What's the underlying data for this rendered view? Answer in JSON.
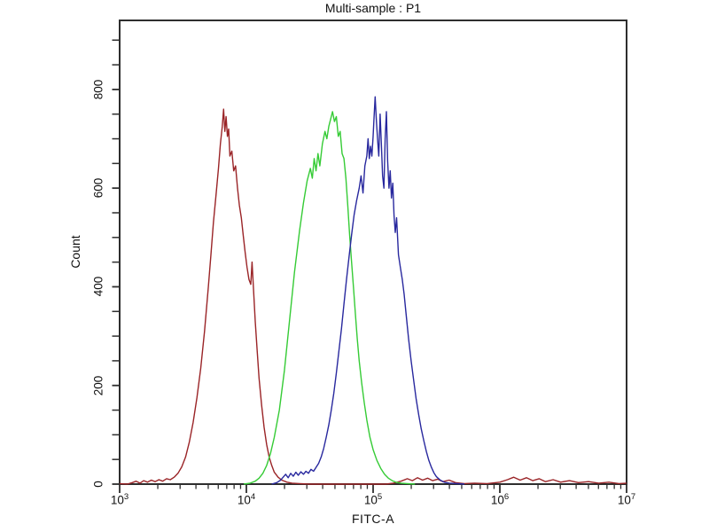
{
  "chart_data": {
    "type": "line",
    "subtype": "flow-cytometry-histogram-overlay",
    "title": "Multi-sample : P1",
    "xlabel": "FITC-A",
    "ylabel": "Count",
    "x_scale": "log10",
    "x_log_range": [
      3,
      7
    ],
    "ylim": [
      0,
      940
    ],
    "grid": false,
    "legend": null,
    "x_axis": {
      "label": "FITC-A",
      "tick_exponents": [
        3,
        4,
        5,
        6,
        7
      ],
      "minor_tick_multipliers": [
        2,
        3,
        4,
        5,
        6,
        7,
        8,
        9
      ]
    },
    "y_axis": {
      "label": "Count",
      "ticks": [
        0,
        200,
        400,
        600,
        800
      ],
      "minor_step": 50,
      "max_minor_tick": 900
    },
    "colors": {
      "red_series": "#9a2427",
      "green_series": "#35cb35",
      "blue_series": "#28289e",
      "axis": "#2e2e2e",
      "text": "#111111",
      "background": "#ffffff"
    },
    "peaks": [
      {
        "series": "red",
        "peak_x_approx": 7000,
        "peak_count": 760
      },
      {
        "series": "green",
        "peak_x_approx": 48000,
        "peak_count": 755
      },
      {
        "series": "blue",
        "peak_x_approx": 105000,
        "peak_count": 785
      }
    ],
    "series": [
      {
        "name": "red",
        "color": "#9a2427",
        "points": [
          [
            3.0,
            1
          ],
          [
            3.06,
            0
          ],
          [
            3.1,
            3
          ],
          [
            3.13,
            6
          ],
          [
            3.16,
            2
          ],
          [
            3.19,
            7
          ],
          [
            3.22,
            4
          ],
          [
            3.25,
            8
          ],
          [
            3.28,
            5
          ],
          [
            3.31,
            9
          ],
          [
            3.34,
            6
          ],
          [
            3.37,
            11
          ],
          [
            3.4,
            9
          ],
          [
            3.43,
            14
          ],
          [
            3.46,
            22
          ],
          [
            3.49,
            35
          ],
          [
            3.52,
            55
          ],
          [
            3.55,
            85
          ],
          [
            3.58,
            125
          ],
          [
            3.61,
            175
          ],
          [
            3.64,
            235
          ],
          [
            3.67,
            310
          ],
          [
            3.7,
            400
          ],
          [
            3.72,
            465
          ],
          [
            3.74,
            530
          ],
          [
            3.76,
            585
          ],
          [
            3.78,
            640
          ],
          [
            3.795,
            690
          ],
          [
            3.81,
            725
          ],
          [
            3.82,
            760
          ],
          [
            3.83,
            715
          ],
          [
            3.84,
            745
          ],
          [
            3.85,
            705
          ],
          [
            3.86,
            720
          ],
          [
            3.87,
            665
          ],
          [
            3.885,
            675
          ],
          [
            3.9,
            635
          ],
          [
            3.915,
            645
          ],
          [
            3.93,
            600
          ],
          [
            3.945,
            565
          ],
          [
            3.96,
            540
          ],
          [
            3.975,
            505
          ],
          [
            3.99,
            470
          ],
          [
            4.005,
            440
          ],
          [
            4.02,
            415
          ],
          [
            4.035,
            405
          ],
          [
            4.045,
            450
          ],
          [
            4.055,
            400
          ],
          [
            4.07,
            330
          ],
          [
            4.085,
            270
          ],
          [
            4.1,
            215
          ],
          [
            4.12,
            160
          ],
          [
            4.14,
            115
          ],
          [
            4.16,
            80
          ],
          [
            4.18,
            55
          ],
          [
            4.2,
            38
          ],
          [
            4.22,
            24
          ],
          [
            4.25,
            14
          ],
          [
            4.28,
            8
          ],
          [
            4.32,
            4
          ],
          [
            4.36,
            2
          ],
          [
            4.42,
            1
          ],
          [
            4.5,
            0
          ],
          [
            5.1,
            0
          ],
          [
            5.16,
            2
          ],
          [
            5.22,
            6
          ],
          [
            5.27,
            11
          ],
          [
            5.31,
            7
          ],
          [
            5.35,
            13
          ],
          [
            5.39,
            8
          ],
          [
            5.43,
            12
          ],
          [
            5.47,
            7
          ],
          [
            5.51,
            10
          ],
          [
            5.55,
            5
          ],
          [
            5.6,
            8
          ],
          [
            5.65,
            3
          ],
          [
            5.72,
            1
          ],
          [
            5.8,
            2
          ],
          [
            5.9,
            1
          ],
          [
            6.0,
            4
          ],
          [
            6.06,
            9
          ],
          [
            6.11,
            14
          ],
          [
            6.16,
            8
          ],
          [
            6.21,
            13
          ],
          [
            6.26,
            7
          ],
          [
            6.31,
            11
          ],
          [
            6.36,
            5
          ],
          [
            6.42,
            9
          ],
          [
            6.48,
            4
          ],
          [
            6.55,
            7
          ],
          [
            6.62,
            3
          ],
          [
            6.7,
            5
          ],
          [
            6.78,
            2
          ],
          [
            6.86,
            4
          ],
          [
            6.94,
            1
          ],
          [
            7.0,
            2
          ]
        ]
      },
      {
        "name": "green",
        "color": "#35cb35",
        "points": [
          [
            3.98,
            0
          ],
          [
            4.03,
            2
          ],
          [
            4.07,
            6
          ],
          [
            4.1,
            12
          ],
          [
            4.13,
            22
          ],
          [
            4.16,
            38
          ],
          [
            4.19,
            62
          ],
          [
            4.22,
            95
          ],
          [
            4.26,
            150
          ],
          [
            4.3,
            230
          ],
          [
            4.34,
            330
          ],
          [
            4.38,
            430
          ],
          [
            4.42,
            515
          ],
          [
            4.45,
            570
          ],
          [
            4.48,
            615
          ],
          [
            4.505,
            640
          ],
          [
            4.52,
            620
          ],
          [
            4.535,
            660
          ],
          [
            4.55,
            635
          ],
          [
            4.565,
            670
          ],
          [
            4.58,
            645
          ],
          [
            4.6,
            690
          ],
          [
            4.62,
            715
          ],
          [
            4.635,
            700
          ],
          [
            4.65,
            725
          ],
          [
            4.665,
            740
          ],
          [
            4.68,
            755
          ],
          [
            4.695,
            735
          ],
          [
            4.71,
            745
          ],
          [
            4.725,
            705
          ],
          [
            4.74,
            715
          ],
          [
            4.755,
            670
          ],
          [
            4.77,
            660
          ],
          [
            4.785,
            620
          ],
          [
            4.8,
            565
          ],
          [
            4.815,
            505
          ],
          [
            4.83,
            450
          ],
          [
            4.845,
            400
          ],
          [
            4.86,
            345
          ],
          [
            4.875,
            295
          ],
          [
            4.89,
            250
          ],
          [
            4.91,
            205
          ],
          [
            4.93,
            165
          ],
          [
            4.95,
            130
          ],
          [
            4.975,
            95
          ],
          [
            5.0,
            70
          ],
          [
            5.03,
            48
          ],
          [
            5.06,
            32
          ],
          [
            5.09,
            20
          ],
          [
            5.12,
            12
          ],
          [
            5.15,
            7
          ],
          [
            5.18,
            4
          ],
          [
            5.22,
            2
          ],
          [
            5.27,
            1
          ],
          [
            5.33,
            0
          ]
        ]
      },
      {
        "name": "blue",
        "color": "#28289e",
        "points": [
          [
            4.2,
            0
          ],
          [
            4.24,
            3
          ],
          [
            4.27,
            8
          ],
          [
            4.29,
            14
          ],
          [
            4.31,
            20
          ],
          [
            4.33,
            13
          ],
          [
            4.35,
            22
          ],
          [
            4.37,
            16
          ],
          [
            4.39,
            24
          ],
          [
            4.41,
            18
          ],
          [
            4.43,
            25
          ],
          [
            4.45,
            20
          ],
          [
            4.47,
            26
          ],
          [
            4.49,
            22
          ],
          [
            4.51,
            30
          ],
          [
            4.53,
            26
          ],
          [
            4.55,
            34
          ],
          [
            4.57,
            42
          ],
          [
            4.59,
            55
          ],
          [
            4.61,
            72
          ],
          [
            4.63,
            95
          ],
          [
            4.65,
            120
          ],
          [
            4.67,
            150
          ],
          [
            4.69,
            185
          ],
          [
            4.71,
            225
          ],
          [
            4.73,
            270
          ],
          [
            4.75,
            315
          ],
          [
            4.77,
            365
          ],
          [
            4.79,
            415
          ],
          [
            4.81,
            460
          ],
          [
            4.83,
            505
          ],
          [
            4.85,
            545
          ],
          [
            4.87,
            575
          ],
          [
            4.89,
            600
          ],
          [
            4.905,
            625
          ],
          [
            4.92,
            590
          ],
          [
            4.935,
            645
          ],
          [
            4.95,
            665
          ],
          [
            4.96,
            700
          ],
          [
            4.97,
            660
          ],
          [
            4.98,
            685
          ],
          [
            4.99,
            665
          ],
          [
            5.0,
            705
          ],
          [
            5.008,
            745
          ],
          [
            5.016,
            785
          ],
          [
            5.025,
            740
          ],
          [
            5.035,
            700
          ],
          [
            5.045,
            665
          ],
          [
            5.055,
            750
          ],
          [
            5.065,
            690
          ],
          [
            5.075,
            625
          ],
          [
            5.085,
            600
          ],
          [
            5.095,
            700
          ],
          [
            5.105,
            755
          ],
          [
            5.115,
            655
          ],
          [
            5.125,
            600
          ],
          [
            5.135,
            635
          ],
          [
            5.145,
            580
          ],
          [
            5.155,
            610
          ],
          [
            5.165,
            545
          ],
          [
            5.175,
            510
          ],
          [
            5.185,
            540
          ],
          [
            5.2,
            465
          ],
          [
            5.215,
            440
          ],
          [
            5.23,
            415
          ],
          [
            5.245,
            385
          ],
          [
            5.26,
            345
          ],
          [
            5.28,
            295
          ],
          [
            5.3,
            250
          ],
          [
            5.32,
            210
          ],
          [
            5.34,
            172
          ],
          [
            5.36,
            140
          ],
          [
            5.38,
            112
          ],
          [
            5.4,
            88
          ],
          [
            5.42,
            66
          ],
          [
            5.44,
            48
          ],
          [
            5.46,
            34
          ],
          [
            5.48,
            23
          ],
          [
            5.5,
            15
          ],
          [
            5.53,
            8
          ],
          [
            5.56,
            4
          ],
          [
            5.6,
            2
          ],
          [
            5.66,
            1
          ],
          [
            5.72,
            0
          ]
        ]
      }
    ]
  }
}
